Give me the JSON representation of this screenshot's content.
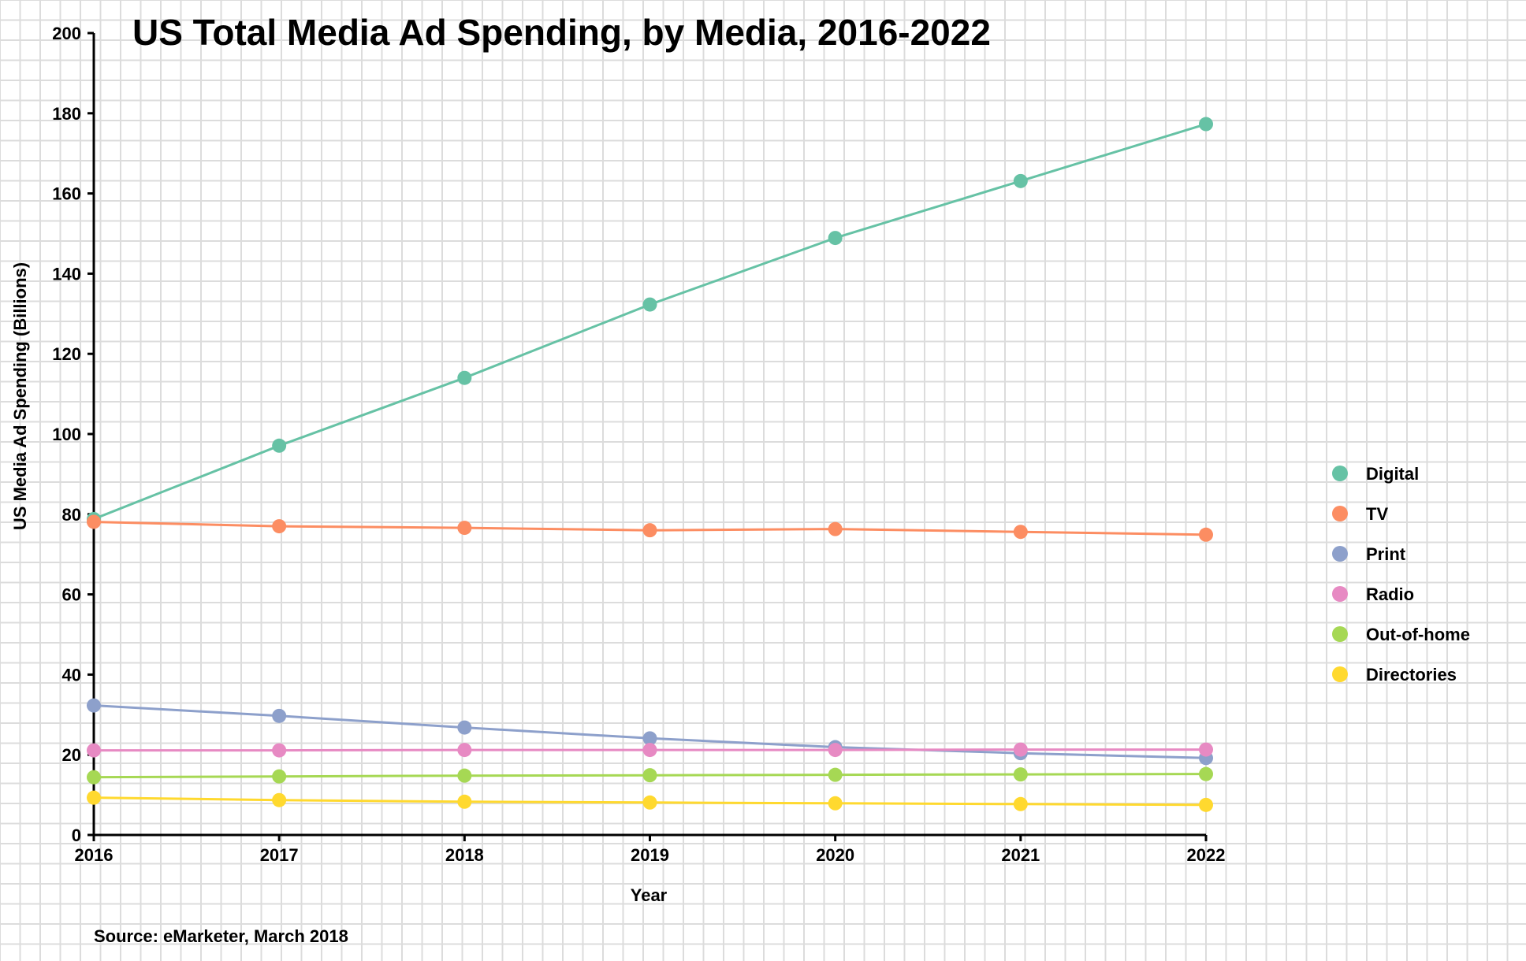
{
  "chart_data": {
    "type": "line",
    "title": "US Total Media Ad Spending, by Media, 2016-2022",
    "xlabel": "Year",
    "ylabel": "US Media Ad Spending (Billions)",
    "source": "Source: eMarketer, March 2018",
    "x": [
      "2016",
      "2017",
      "2018",
      "2019",
      "2020",
      "2021",
      "2022"
    ],
    "ylim": [
      0,
      200
    ],
    "yticks": [
      "0",
      "20",
      "40",
      "60",
      "80",
      "100",
      "120",
      "140",
      "160",
      "180",
      "200"
    ],
    "legend_position": "right",
    "series": [
      {
        "name": "Digital",
        "color": "#66c2a5",
        "values": [
          78.8,
          97.1,
          114.0,
          132.3,
          148.9,
          163.1,
          177.3
        ]
      },
      {
        "name": "TV",
        "color": "#fc8d62",
        "values": [
          78.1,
          77.0,
          76.6,
          76.0,
          76.3,
          75.6,
          74.9
        ]
      },
      {
        "name": "Print",
        "color": "#8da0cb",
        "values": [
          32.3,
          29.7,
          26.8,
          24.1,
          21.9,
          20.4,
          19.2
        ]
      },
      {
        "name": "Radio",
        "color": "#e78ac3",
        "values": [
          21.1,
          21.1,
          21.2,
          21.2,
          21.2,
          21.3,
          21.3
        ]
      },
      {
        "name": "Out-of-home",
        "color": "#a6d854",
        "values": [
          14.4,
          14.6,
          14.8,
          14.9,
          15.0,
          15.1,
          15.2
        ]
      },
      {
        "name": "Directories",
        "color": "#ffd92f",
        "values": [
          9.3,
          8.7,
          8.3,
          8.1,
          7.9,
          7.7,
          7.5
        ]
      }
    ]
  }
}
